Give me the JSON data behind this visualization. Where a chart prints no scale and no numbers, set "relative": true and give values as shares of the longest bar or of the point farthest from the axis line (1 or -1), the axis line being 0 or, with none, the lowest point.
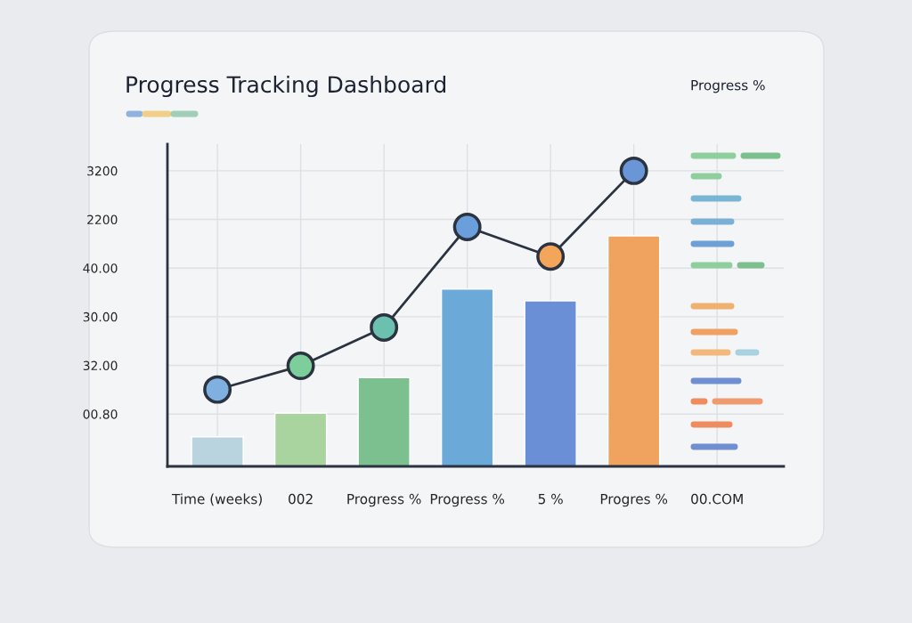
{
  "chart_data": {
    "type": "bar",
    "title": "Progress Tracking Dashboard",
    "relative": true,
    "categories": [
      "Time (weeks)",
      "002",
      "Progress %",
      "Progress %",
      "5 %",
      "Progres %",
      "00.COM"
    ],
    "series": [
      {
        "colors": [
          "#b9d3df",
          "#a9d49f",
          "#7cc08f",
          "#6aa9d8",
          "#6b8fd6",
          "#f0a35e",
          null
        ],
        "values": [
          0.1,
          0.18,
          0.3,
          0.6,
          0.56,
          0.78,
          null
        ]
      },
      {
        "type": "line",
        "color": "#2b3340",
        "colors": [
          "#7fb0e0",
          "#7ccf9a",
          "#6cc0b0",
          "#6b9fdc",
          "#f3a55a",
          "#6a95d6",
          null
        ],
        "values": [
          0.26,
          0.34,
          0.47,
          0.81,
          0.71,
          1,
          null
        ],
        "marker": "circle",
        "line_style": "solid"
      }
    ],
    "grid": true,
    "annotations": [
      "Progress %",
      "3200",
      "2200",
      "40.00",
      "30.00",
      "32.00",
      "00.80"
    ]
  }
}
